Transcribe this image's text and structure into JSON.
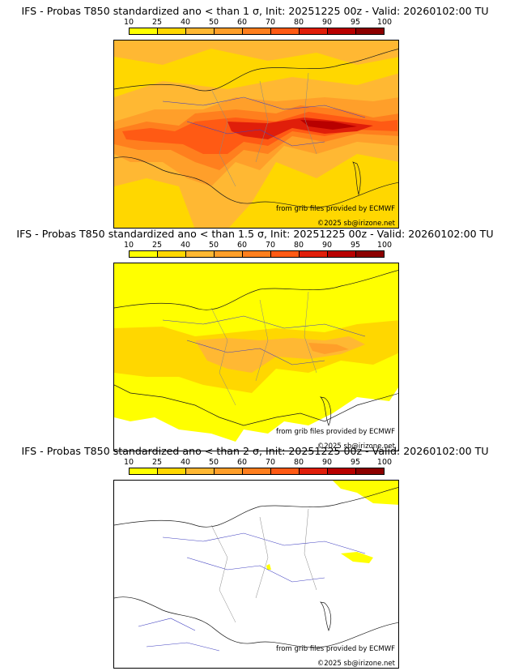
{
  "colorbar": {
    "ticks": [
      "10",
      "25",
      "40",
      "50",
      "60",
      "70",
      "80",
      "90",
      "95",
      "100"
    ],
    "colors": [
      "#ffff00",
      "#ffd700",
      "#ffb833",
      "#ff9f2a",
      "#ff7f1e",
      "#ff5a14",
      "#e01e0a",
      "#b80000",
      "#8c0000",
      "#5a0000"
    ]
  },
  "panels": [
    {
      "title": "IFS - Probas T850  standardized ano < than 1 σ, Init: 20251225 00z - Valid: 20260102:00 TU",
      "level": "high"
    },
    {
      "title": "IFS - Probas T850  standardized ano < than 1.5 σ, Init: 20251225 00z - Valid: 20260102:00 TU",
      "level": "medium"
    },
    {
      "title": "IFS - Probas T850  standardized ano < than 2 σ, Init: 20251225 00z - Valid: 20260102:00 TU",
      "level": "low"
    }
  ],
  "credits": {
    "source": "from grib files provided by ECMWF",
    "copyright": "©2025 sb@irizone.net"
  }
}
